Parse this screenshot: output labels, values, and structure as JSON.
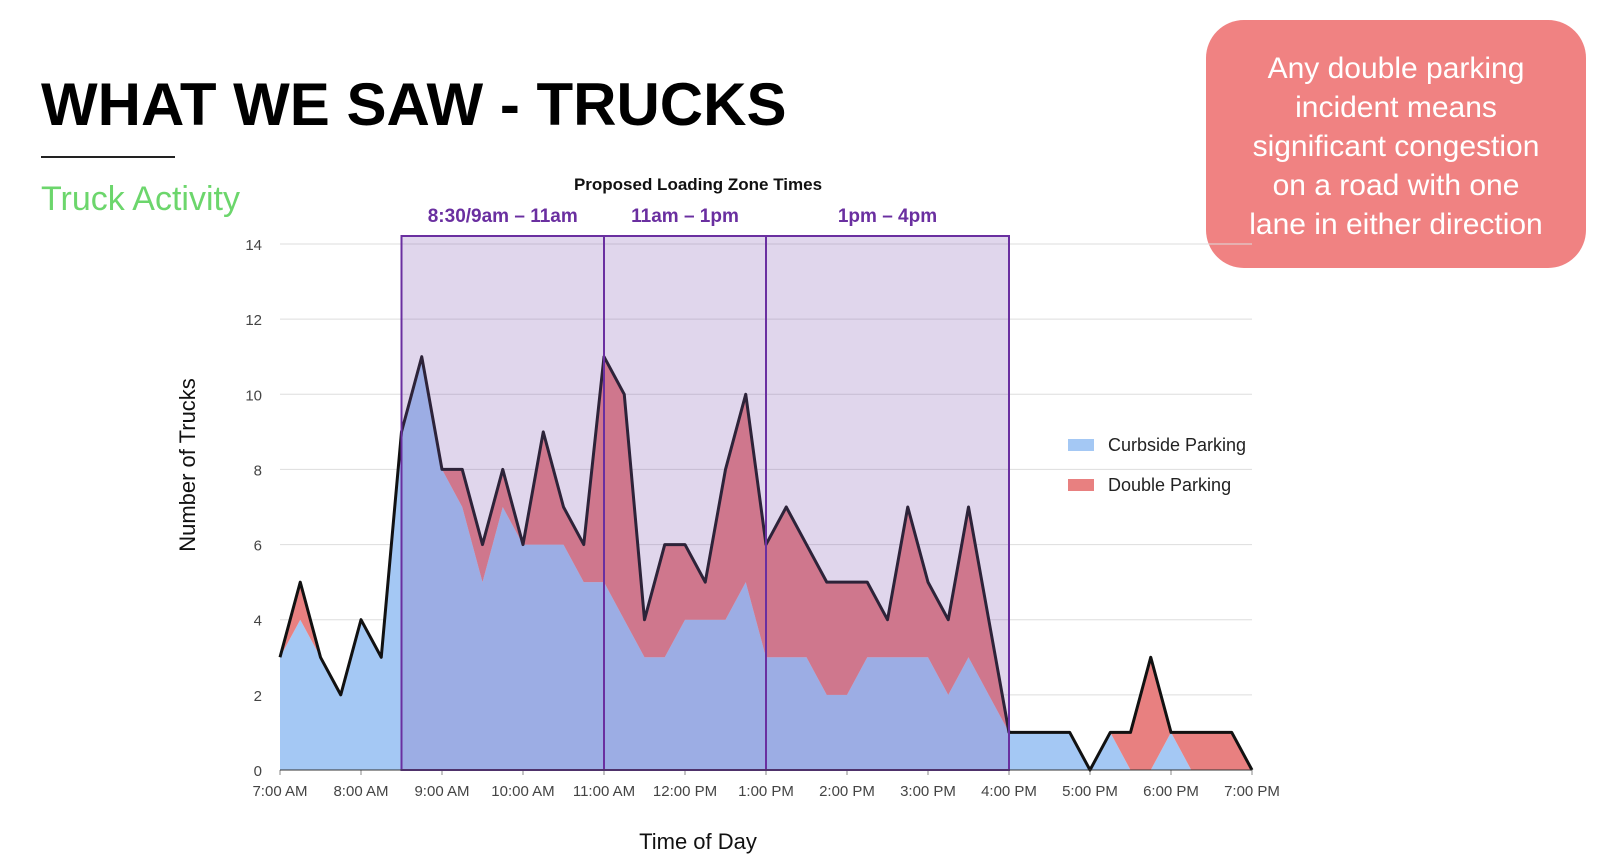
{
  "header": {
    "title": "WHAT WE SAW - TRUCKS",
    "subtitle": "Truck Activity"
  },
  "callout": {
    "lines": [
      "Any double parking",
      "incident means",
      "significant congestion",
      "on a road with one",
      "lane in either direction"
    ]
  },
  "chart_data": {
    "type": "stacked-area",
    "title": "Proposed Loading Zone Times",
    "x_label": "Time of Day",
    "y_label": "Number of Trucks",
    "zones": [
      {
        "label": "8:30/9am – 11am",
        "start": 8.5,
        "end": 11
      },
      {
        "label": "11am – 1pm",
        "start": 11,
        "end": 13
      },
      {
        "label": "1pm – 4pm",
        "start": 13,
        "end": 16
      }
    ],
    "x": [
      7,
      7.25,
      7.5,
      7.75,
      8,
      8.25,
      8.5,
      8.75,
      9,
      9.25,
      9.5,
      9.75,
      10,
      10.25,
      10.5,
      10.75,
      11,
      11.25,
      11.5,
      11.75,
      12,
      12.25,
      12.5,
      12.75,
      13,
      13.25,
      13.5,
      13.75,
      14,
      14.25,
      14.5,
      14.75,
      15,
      15.25,
      15.5,
      15.75,
      16,
      16.25,
      16.5,
      16.75,
      17,
      17.25,
      17.5,
      17.75,
      18,
      18.25,
      18.5,
      18.75,
      19
    ],
    "series": [
      {
        "name": "Curbside Parking",
        "color": "#a4c8f4",
        "values": [
          3,
          4,
          3,
          2,
          4,
          3,
          9,
          11,
          8,
          7,
          5,
          7,
          6,
          6,
          6,
          5,
          5,
          4,
          3,
          3,
          4,
          4,
          4,
          5,
          3,
          3,
          3,
          2,
          2,
          3,
          3,
          3,
          3,
          2,
          3,
          2,
          1,
          1,
          1,
          1,
          0,
          1,
          0,
          0,
          1,
          0,
          0,
          0,
          0
        ]
      },
      {
        "name": "Double Parking",
        "color": "#e88080",
        "values": [
          0,
          1,
          0,
          0,
          0,
          0,
          0,
          0,
          0,
          1,
          1,
          1,
          0,
          3,
          1,
          1,
          6,
          6,
          1,
          3,
          2,
          1,
          4,
          5,
          3,
          4,
          3,
          3,
          3,
          2,
          1,
          4,
          2,
          2,
          4,
          2,
          0,
          0,
          0,
          0,
          0,
          0,
          1,
          3,
          0,
          1,
          1,
          1,
          0
        ]
      }
    ],
    "xlim": [
      7,
      19
    ],
    "xticks": [
      {
        "value": 7,
        "label": "7:00 AM"
      },
      {
        "value": 8,
        "label": "8:00 AM"
      },
      {
        "value": 9,
        "label": "9:00 AM"
      },
      {
        "value": 10,
        "label": "10:00 AM"
      },
      {
        "value": 11,
        "label": "11:00 AM"
      },
      {
        "value": 12,
        "label": "12:00 PM"
      },
      {
        "value": 13,
        "label": "1:00 PM"
      },
      {
        "value": 14,
        "label": "2:00 PM"
      },
      {
        "value": 15,
        "label": "3:00 PM"
      },
      {
        "value": 16,
        "label": "4:00 PM"
      },
      {
        "value": 17,
        "label": "5:00 PM"
      },
      {
        "value": 18,
        "label": "6:00 PM"
      },
      {
        "value": 19,
        "label": "7:00 PM"
      }
    ],
    "ylim": [
      0,
      14
    ],
    "yticks": [
      0,
      2,
      4,
      6,
      8,
      10,
      12,
      14
    ],
    "grid": true,
    "legend": "right"
  }
}
